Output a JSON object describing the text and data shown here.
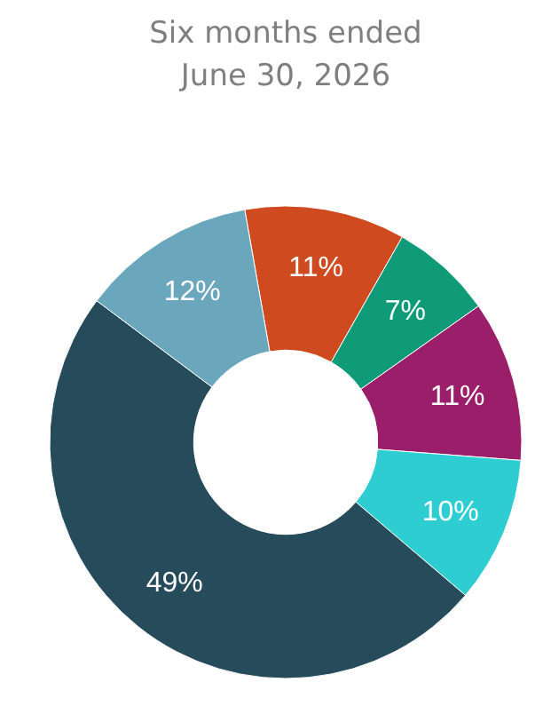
{
  "chart_data": {
    "type": "donut",
    "title": "Six months ended\nJune 30, 2026",
    "categories": [
      null,
      null,
      null,
      null,
      null,
      null
    ],
    "values": [
      11,
      7,
      11,
      10,
      49,
      12
    ],
    "value_labels": [
      "11%",
      "7%",
      "11%",
      "10%",
      "49%",
      "12%"
    ],
    "colors": [
      "#cf4a1f",
      "#0f9b78",
      "#9b1e6a",
      "#2ecdd2",
      "#264b5b",
      "#6aa6bc"
    ]
  }
}
